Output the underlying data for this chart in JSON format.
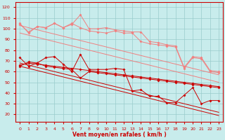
{
  "x": [
    0,
    1,
    2,
    3,
    4,
    5,
    6,
    7,
    8,
    9,
    10,
    11,
    12,
    13,
    14,
    15,
    16,
    17,
    18,
    19,
    20,
    21,
    22,
    23
  ],
  "pink_data1": [
    105,
    96,
    102,
    101,
    105,
    101,
    105,
    101,
    98,
    97,
    96,
    98,
    96,
    96,
    88,
    86,
    85,
    84,
    83,
    63,
    73,
    72,
    60,
    59
  ],
  "pink_data2": [
    104,
    97,
    102,
    101,
    105,
    101,
    104,
    113,
    100,
    100,
    101,
    99,
    98,
    97,
    97,
    88,
    87,
    85,
    84,
    64,
    74,
    73,
    61,
    60
  ],
  "pink_trend1": [
    103,
    101,
    99,
    97,
    95,
    93,
    91,
    89,
    87,
    85,
    83,
    81,
    79,
    77,
    75,
    73,
    71,
    69,
    67,
    65,
    63,
    61,
    59,
    57
  ],
  "pink_trend2": [
    96,
    94,
    92,
    90,
    88,
    86,
    84,
    82,
    80,
    78,
    76,
    74,
    72,
    70,
    68,
    66,
    64,
    62,
    60,
    58,
    56,
    54,
    52,
    50
  ],
  "red_data1": [
    73,
    65,
    68,
    73,
    74,
    67,
    60,
    76,
    62,
    62,
    62,
    63,
    62,
    42,
    43,
    37,
    37,
    31,
    31,
    38,
    45,
    30,
    33,
    33
  ],
  "red_data2": [
    66,
    68,
    67,
    66,
    65,
    64,
    63,
    62,
    61,
    60,
    59,
    58,
    57,
    56,
    55,
    54,
    53,
    52,
    51,
    50,
    49,
    48,
    47,
    46
  ],
  "red_data3": [
    65,
    69,
    68,
    65,
    64,
    63,
    62,
    54,
    60,
    59,
    58,
    57,
    56,
    55,
    54,
    53,
    52,
    51,
    50,
    49,
    48,
    47,
    46,
    45
  ],
  "red_trend1": [
    68,
    66,
    64,
    62,
    60,
    58,
    56,
    54,
    52,
    50,
    48,
    46,
    44,
    42,
    40,
    38,
    36,
    34,
    32,
    30,
    28,
    26,
    24,
    22
  ],
  "red_trend2": [
    65,
    63,
    61,
    59,
    57,
    55,
    53,
    51,
    49,
    47,
    45,
    43,
    41,
    39,
    37,
    35,
    33,
    31,
    29,
    27,
    25,
    23,
    21,
    19
  ],
  "color_light": "#f08080",
  "color_dark": "#cc0000",
  "bg_color": "#c8ecec",
  "grid_color": "#99cccc",
  "xlabel": "Vent moyen/en rafales ( km/h )",
  "ylabel_ticks": [
    20,
    30,
    40,
    50,
    60,
    70,
    80,
    90,
    100,
    110,
    120
  ],
  "xlim": [
    -0.5,
    23.5
  ],
  "ylim": [
    13,
    125
  ]
}
